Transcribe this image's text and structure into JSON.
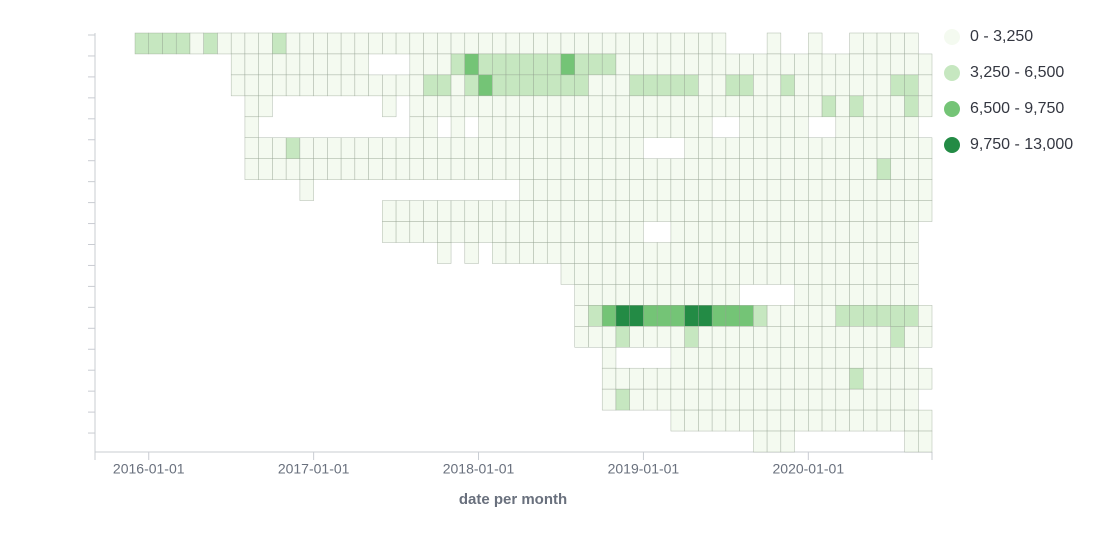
{
  "chart_data": {
    "type": "heatmap",
    "x_label": "date per month",
    "x": [
      "2015-12-01",
      "2016-01-01",
      "2016-02-01",
      "2016-03-01",
      "2016-04-01",
      "2016-05-01",
      "2016-06-01",
      "2016-07-01",
      "2016-08-01",
      "2016-09-01",
      "2016-10-01",
      "2016-11-01",
      "2016-12-01",
      "2017-01-01",
      "2017-02-01",
      "2017-03-01",
      "2017-04-01",
      "2017-05-01",
      "2017-06-01",
      "2017-07-01",
      "2017-08-01",
      "2017-09-01",
      "2017-10-01",
      "2017-11-01",
      "2017-12-01",
      "2018-01-01",
      "2018-02-01",
      "2018-03-01",
      "2018-04-01",
      "2018-05-01",
      "2018-06-01",
      "2018-07-01",
      "2018-08-01",
      "2018-09-01",
      "2018-10-01",
      "2018-11-01",
      "2018-12-01",
      "2019-01-01",
      "2019-02-01",
      "2019-03-01",
      "2019-04-01",
      "2019-05-01",
      "2019-06-01",
      "2019-07-01",
      "2019-08-01",
      "2019-09-01",
      "2019-10-01",
      "2019-11-01",
      "2019-12-01",
      "2020-01-01",
      "2020-02-01",
      "2020-03-01",
      "2020-04-01",
      "2020-05-01",
      "2020-06-01",
      "2020-07-01",
      "2020-08-01",
      "2020-09-01"
    ],
    "xticks": [
      "2016-01-01",
      "2017-01-01",
      "2018-01-01",
      "2019-01-01",
      "2020-01-01"
    ],
    "y": [
      null,
      null,
      null,
      null,
      null,
      null,
      null,
      null,
      null,
      null,
      null,
      null,
      null,
      null,
      null,
      null,
      null,
      null,
      null,
      null
    ],
    "color_ranges": [
      {
        "from": 0,
        "to": 3250,
        "label": "0 - 3,250",
        "color": "#f4faf0"
      },
      {
        "from": 3250,
        "to": 6500,
        "label": "3,250 - 6,500",
        "color": "#c6e7c0"
      },
      {
        "from": 6500,
        "to": 9750,
        "label": "6,500 - 9,750",
        "color": "#74c476"
      },
      {
        "from": 9750,
        "to": 13000,
        "label": "9,750 - 13,000",
        "color": "#238b45"
      }
    ],
    "values": [
      [
        4500,
        4500,
        4500,
        4500,
        1000,
        4500,
        1000,
        1000,
        1000,
        1000,
        4500,
        1000,
        1000,
        1000,
        1000,
        1000,
        1000,
        1000,
        1000,
        1000,
        1000,
        1000,
        1000,
        1000,
        1000,
        1000,
        1000,
        1000,
        1000,
        1000,
        1000,
        1000,
        1000,
        1000,
        1000,
        1000,
        1000,
        1000,
        1000,
        1000,
        1000,
        1000,
        1000,
        null,
        null,
        null,
        1000,
        null,
        null,
        1000,
        null,
        null,
        1000,
        1000,
        1000,
        1000,
        1000,
        null
      ],
      [
        null,
        null,
        null,
        null,
        null,
        null,
        null,
        1000,
        1000,
        1000,
        1000,
        1000,
        1000,
        1000,
        1000,
        1000,
        1000,
        null,
        null,
        null,
        1000,
        1000,
        1000,
        4500,
        8000,
        4500,
        4500,
        4500,
        4500,
        4500,
        4500,
        8000,
        4500,
        4500,
        4500,
        1000,
        1000,
        1000,
        1000,
        1000,
        1000,
        1000,
        1000,
        1000,
        1000,
        1000,
        1000,
        1000,
        1000,
        1000,
        1000,
        1000,
        1000,
        1000,
        1000,
        1000,
        1000,
        1000
      ],
      [
        null,
        null,
        null,
        null,
        null,
        null,
        null,
        1000,
        1000,
        1000,
        1000,
        1000,
        1000,
        1000,
        1000,
        1000,
        1000,
        1000,
        1000,
        1000,
        1000,
        4500,
        4500,
        1000,
        4500,
        8000,
        4500,
        4500,
        4500,
        4500,
        4500,
        4500,
        4500,
        1000,
        1000,
        1000,
        4500,
        4500,
        4500,
        4500,
        4500,
        1000,
        1000,
        4500,
        4500,
        1000,
        1000,
        4500,
        1000,
        1000,
        1000,
        1000,
        1000,
        1000,
        1000,
        4500,
        4500,
        1000
      ],
      [
        null,
        null,
        null,
        null,
        null,
        null,
        null,
        null,
        1000,
        1000,
        null,
        null,
        null,
        null,
        null,
        null,
        null,
        null,
        1000,
        null,
        1000,
        1000,
        1000,
        1000,
        1000,
        1000,
        1000,
        1000,
        1000,
        1000,
        1000,
        1000,
        1000,
        1000,
        1000,
        1000,
        1000,
        1000,
        1000,
        1000,
        1000,
        1000,
        1000,
        1000,
        1000,
        1000,
        1000,
        1000,
        1000,
        1000,
        4500,
        1000,
        4500,
        1000,
        1000,
        1000,
        4500,
        1000
      ],
      [
        null,
        null,
        null,
        null,
        null,
        null,
        null,
        null,
        1000,
        null,
        null,
        null,
        null,
        null,
        null,
        null,
        null,
        null,
        null,
        null,
        1000,
        1000,
        null,
        1000,
        null,
        1000,
        1000,
        1000,
        1000,
        1000,
        1000,
        1000,
        1000,
        1000,
        1000,
        1000,
        1000,
        1000,
        1000,
        1000,
        1000,
        1000,
        null,
        null,
        1000,
        1000,
        1000,
        1000,
        1000,
        null,
        null,
        1000,
        1000,
        1000,
        1000,
        1000,
        1000,
        null
      ],
      [
        null,
        null,
        null,
        null,
        null,
        null,
        null,
        null,
        1000,
        1000,
        1000,
        4500,
        1000,
        1000,
        1000,
        1000,
        1000,
        1000,
        1000,
        1000,
        1000,
        1000,
        1000,
        1000,
        1000,
        1000,
        1000,
        1000,
        1000,
        1000,
        1000,
        1000,
        1000,
        1000,
        1000,
        1000,
        1000,
        null,
        null,
        null,
        1000,
        1000,
        1000,
        1000,
        1000,
        1000,
        1000,
        1000,
        1000,
        1000,
        1000,
        1000,
        1000,
        1000,
        1000,
        1000,
        1000,
        1000
      ],
      [
        null,
        null,
        null,
        null,
        null,
        null,
        null,
        null,
        1000,
        1000,
        1000,
        1000,
        1000,
        1000,
        1000,
        1000,
        1000,
        1000,
        1000,
        1000,
        1000,
        1000,
        1000,
        1000,
        1000,
        1000,
        1000,
        1000,
        1000,
        1000,
        1000,
        1000,
        1000,
        1000,
        1000,
        1000,
        1000,
        1000,
        1000,
        1000,
        1000,
        1000,
        1000,
        1000,
        1000,
        1000,
        1000,
        1000,
        1000,
        1000,
        1000,
        1000,
        1000,
        1000,
        4500,
        1000,
        1000,
        1000
      ],
      [
        null,
        null,
        null,
        null,
        null,
        null,
        null,
        null,
        null,
        null,
        null,
        null,
        1000,
        null,
        null,
        null,
        null,
        null,
        null,
        null,
        null,
        null,
        null,
        null,
        null,
        null,
        null,
        null,
        1000,
        1000,
        1000,
        1000,
        1000,
        1000,
        1000,
        1000,
        1000,
        1000,
        1000,
        1000,
        1000,
        1000,
        1000,
        1000,
        1000,
        1000,
        1000,
        1000,
        1000,
        1000,
        1000,
        1000,
        1000,
        1000,
        1000,
        1000,
        1000,
        1000
      ],
      [
        null,
        null,
        null,
        null,
        null,
        null,
        null,
        null,
        null,
        null,
        null,
        null,
        null,
        null,
        null,
        null,
        null,
        null,
        1000,
        1000,
        1000,
        1000,
        1000,
        1000,
        1000,
        1000,
        1000,
        1000,
        1000,
        1000,
        1000,
        1000,
        1000,
        1000,
        1000,
        1000,
        1000,
        1000,
        1000,
        1000,
        1000,
        1000,
        1000,
        1000,
        1000,
        1000,
        1000,
        1000,
        1000,
        1000,
        1000,
        1000,
        1000,
        1000,
        1000,
        1000,
        1000,
        1000
      ],
      [
        null,
        null,
        null,
        null,
        null,
        null,
        null,
        null,
        null,
        null,
        null,
        null,
        null,
        null,
        null,
        null,
        null,
        null,
        1000,
        1000,
        1000,
        1000,
        1000,
        1000,
        1000,
        1000,
        1000,
        1000,
        1000,
        1000,
        1000,
        1000,
        1000,
        1000,
        1000,
        1000,
        1000,
        null,
        null,
        1000,
        1000,
        1000,
        1000,
        1000,
        1000,
        1000,
        1000,
        1000,
        1000,
        1000,
        1000,
        1000,
        1000,
        1000,
        1000,
        1000,
        1000,
        null
      ],
      [
        null,
        null,
        null,
        null,
        null,
        null,
        null,
        null,
        null,
        null,
        null,
        null,
        null,
        null,
        null,
        null,
        null,
        null,
        null,
        null,
        null,
        null,
        1000,
        null,
        1000,
        null,
        1000,
        1000,
        1000,
        1000,
        1000,
        1000,
        1000,
        1000,
        1000,
        1000,
        1000,
        1000,
        1000,
        1000,
        1000,
        1000,
        1000,
        1000,
        1000,
        1000,
        1000,
        1000,
        1000,
        1000,
        1000,
        1000,
        1000,
        1000,
        1000,
        1000,
        1000,
        null
      ],
      [
        null,
        null,
        null,
        null,
        null,
        null,
        null,
        null,
        null,
        null,
        null,
        null,
        null,
        null,
        null,
        null,
        null,
        null,
        null,
        null,
        null,
        null,
        null,
        null,
        null,
        null,
        null,
        null,
        null,
        null,
        null,
        1000,
        1000,
        1000,
        1000,
        1000,
        1000,
        1000,
        1000,
        1000,
        1000,
        1000,
        1000,
        1000,
        1000,
        1000,
        1000,
        1000,
        1000,
        1000,
        1000,
        1000,
        1000,
        1000,
        1000,
        1000,
        1000,
        null
      ],
      [
        null,
        null,
        null,
        null,
        null,
        null,
        null,
        null,
        null,
        null,
        null,
        null,
        null,
        null,
        null,
        null,
        null,
        null,
        null,
        null,
        null,
        null,
        null,
        null,
        null,
        null,
        null,
        null,
        null,
        null,
        null,
        null,
        1000,
        1000,
        1000,
        1000,
        1000,
        1000,
        1000,
        1000,
        1000,
        1000,
        1000,
        1000,
        null,
        null,
        null,
        null,
        1000,
        1000,
        1000,
        1000,
        1000,
        1000,
        1000,
        1000,
        1000,
        null
      ],
      [
        null,
        null,
        null,
        null,
        null,
        null,
        null,
        null,
        null,
        null,
        null,
        null,
        null,
        null,
        null,
        null,
        null,
        null,
        null,
        null,
        null,
        null,
        null,
        null,
        null,
        null,
        null,
        null,
        null,
        null,
        null,
        null,
        1000,
        4500,
        8000,
        11500,
        11500,
        8000,
        8000,
        8000,
        11500,
        11500,
        8000,
        8000,
        8000,
        4500,
        1000,
        1000,
        1000,
        1000,
        1000,
        4500,
        4500,
        4500,
        4500,
        4500,
        4500,
        1000
      ],
      [
        null,
        null,
        null,
        null,
        null,
        null,
        null,
        null,
        null,
        null,
        null,
        null,
        null,
        null,
        null,
        null,
        null,
        null,
        null,
        null,
        null,
        null,
        null,
        null,
        null,
        null,
        null,
        null,
        null,
        null,
        null,
        null,
        1000,
        1000,
        1000,
        4500,
        1000,
        1000,
        1000,
        1000,
        4500,
        1000,
        1000,
        1000,
        1000,
        1000,
        1000,
        1000,
        1000,
        1000,
        1000,
        1000,
        1000,
        1000,
        1000,
        4500,
        1000,
        1000
      ],
      [
        null,
        null,
        null,
        null,
        null,
        null,
        null,
        null,
        null,
        null,
        null,
        null,
        null,
        null,
        null,
        null,
        null,
        null,
        null,
        null,
        null,
        null,
        null,
        null,
        null,
        null,
        null,
        null,
        null,
        null,
        null,
        null,
        null,
        null,
        1000,
        null,
        null,
        null,
        null,
        1000,
        1000,
        1000,
        1000,
        1000,
        1000,
        1000,
        1000,
        1000,
        1000,
        1000,
        1000,
        1000,
        1000,
        1000,
        1000,
        1000,
        1000,
        null
      ],
      [
        null,
        null,
        null,
        null,
        null,
        null,
        null,
        null,
        null,
        null,
        null,
        null,
        null,
        null,
        null,
        null,
        null,
        null,
        null,
        null,
        null,
        null,
        null,
        null,
        null,
        null,
        null,
        null,
        null,
        null,
        null,
        null,
        null,
        null,
        1000,
        1000,
        1000,
        1000,
        1000,
        1000,
        1000,
        1000,
        1000,
        1000,
        1000,
        1000,
        1000,
        1000,
        1000,
        1000,
        1000,
        1000,
        4500,
        1000,
        1000,
        1000,
        1000,
        1000
      ],
      [
        null,
        null,
        null,
        null,
        null,
        null,
        null,
        null,
        null,
        null,
        null,
        null,
        null,
        null,
        null,
        null,
        null,
        null,
        null,
        null,
        null,
        null,
        null,
        null,
        null,
        null,
        null,
        null,
        null,
        null,
        null,
        null,
        null,
        null,
        1000,
        4500,
        1000,
        1000,
        1000,
        1000,
        1000,
        1000,
        1000,
        1000,
        1000,
        1000,
        1000,
        1000,
        1000,
        1000,
        1000,
        1000,
        1000,
        1000,
        1000,
        1000,
        1000,
        null
      ],
      [
        null,
        null,
        null,
        null,
        null,
        null,
        null,
        null,
        null,
        null,
        null,
        null,
        null,
        null,
        null,
        null,
        null,
        null,
        null,
        null,
        null,
        null,
        null,
        null,
        null,
        null,
        null,
        null,
        null,
        null,
        null,
        null,
        null,
        null,
        null,
        null,
        null,
        null,
        null,
        1000,
        1000,
        1000,
        1000,
        1000,
        1000,
        1000,
        1000,
        1000,
        1000,
        1000,
        1000,
        1000,
        1000,
        1000,
        1000,
        1000,
        1000,
        1000
      ],
      [
        null,
        null,
        null,
        null,
        null,
        null,
        null,
        null,
        null,
        null,
        null,
        null,
        null,
        null,
        null,
        null,
        null,
        null,
        null,
        null,
        null,
        null,
        null,
        null,
        null,
        null,
        null,
        null,
        null,
        null,
        null,
        null,
        null,
        null,
        null,
        null,
        null,
        null,
        null,
        null,
        null,
        null,
        null,
        null,
        null,
        1000,
        1000,
        1000,
        null,
        null,
        null,
        null,
        null,
        null,
        null,
        null,
        1000,
        1000
      ]
    ]
  }
}
